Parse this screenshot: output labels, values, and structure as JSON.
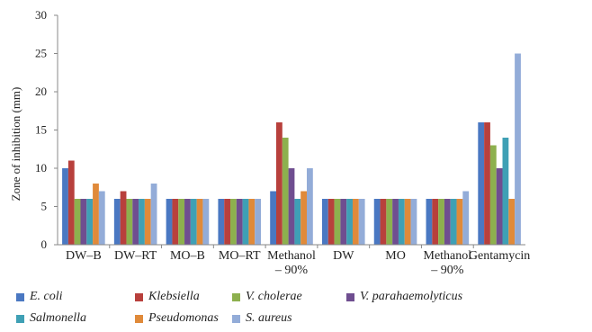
{
  "chart_data": {
    "type": "bar",
    "ylabel": "Zone of inhibition (mm)",
    "ylim": [
      0,
      30
    ],
    "yticks": [
      0,
      5,
      10,
      15,
      20,
      25,
      30
    ],
    "categories": [
      [
        "DW–B"
      ],
      [
        "DW–RT"
      ],
      [
        "MO–B"
      ],
      [
        "MO–RT"
      ],
      [
        "Methanol",
        "– 90%"
      ],
      [
        "DW"
      ],
      [
        "MO"
      ],
      [
        "Methanol",
        "– 90%"
      ],
      [
        "Gentamycin"
      ]
    ],
    "series": [
      {
        "name": "E. coli",
        "color": "#4a78c2",
        "values": [
          10,
          6,
          6,
          6,
          7,
          6,
          6,
          6,
          16
        ]
      },
      {
        "name": "Klebsiella",
        "color": "#b8403c",
        "values": [
          11,
          7,
          6,
          6,
          16,
          6,
          6,
          6,
          16
        ]
      },
      {
        "name": "V. cholerae",
        "color": "#8db04e",
        "values": [
          6,
          6,
          6,
          6,
          14,
          6,
          6,
          6,
          13
        ]
      },
      {
        "name": "V. parahaemolyticus",
        "color": "#6f4e90",
        "values": [
          6,
          6,
          6,
          6,
          10,
          6,
          6,
          6,
          10
        ]
      },
      {
        "name": "Salmonella",
        "color": "#3fa0b5",
        "values": [
          6,
          6,
          6,
          6,
          6,
          6,
          6,
          6,
          14
        ]
      },
      {
        "name": "Pseudomonas",
        "color": "#e08a3a",
        "values": [
          8,
          6,
          6,
          6,
          7,
          6,
          6,
          6,
          6
        ]
      },
      {
        "name": "S. aureus",
        "color": "#93acd8",
        "values": [
          7,
          8,
          6,
          6,
          10,
          6,
          6,
          7,
          25
        ]
      }
    ],
    "grid": false,
    "legend_position": "bottom"
  }
}
